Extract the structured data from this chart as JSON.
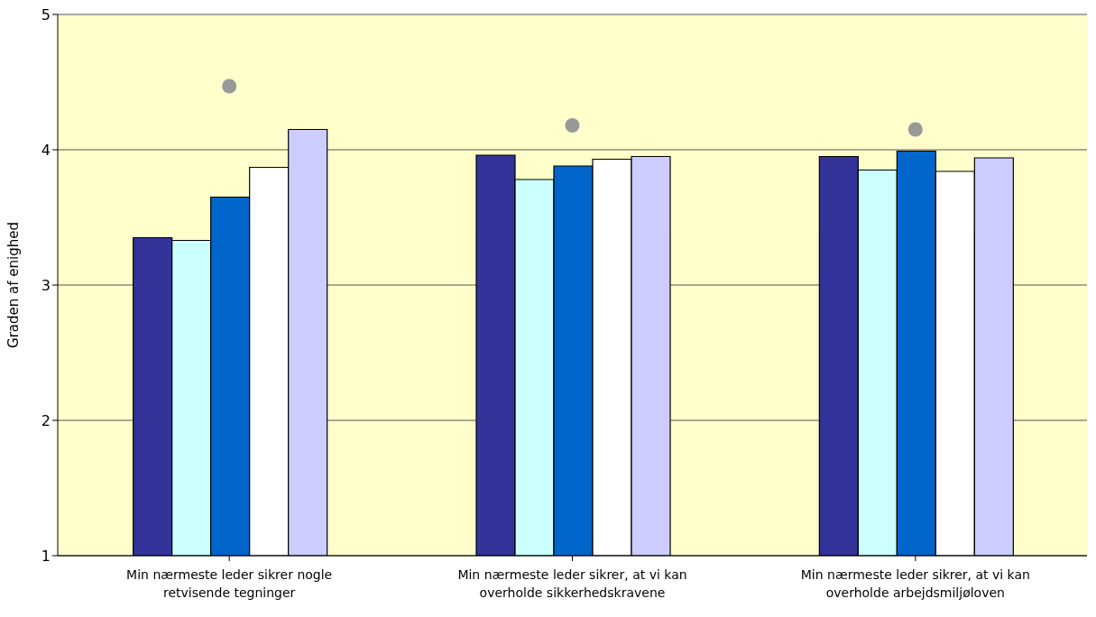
{
  "chart_data": {
    "type": "bar",
    "ylabel": "Graden af enighed",
    "categories": [
      "Min nærmeste leder sikrer nogle retvisende tegninger",
      "Min nærmeste leder sikrer, at vi kan overholde sikkerhedskravene",
      "Min nærmeste leder sikrer, at vi kan overholde arbejdsmiljøloven"
    ],
    "series": [
      {
        "color": "#333399",
        "values": [
          3.35,
          3.96,
          3.95
        ]
      },
      {
        "color": "#ccffff",
        "values": [
          3.33,
          3.78,
          3.85
        ]
      },
      {
        "color": "#0066cc",
        "values": [
          3.65,
          3.88,
          3.99
        ]
      },
      {
        "color": "#ffffff",
        "values": [
          3.87,
          3.93,
          3.84
        ]
      },
      {
        "color": "#ccccff",
        "values": [
          4.15,
          3.95,
          3.94
        ]
      },
      {
        "type": "scatter",
        "color": "#999999",
        "x": [
          "Min nærmeste leder sikrer nogle retvisende tegninger",
          "Min nærmeste leder sikrer, at vi kan overholde sikkerhedskravene",
          "Min nærmeste leder sikrer, at vi kan overholde arbejdsmiljøloven"
        ],
        "values": [
          4.47,
          4.18,
          4.15
        ]
      }
    ],
    "ylim": [
      1,
      5
    ],
    "yticks": [
      1,
      2,
      3,
      4,
      5
    ],
    "grid": "y",
    "marker": "circle"
  }
}
